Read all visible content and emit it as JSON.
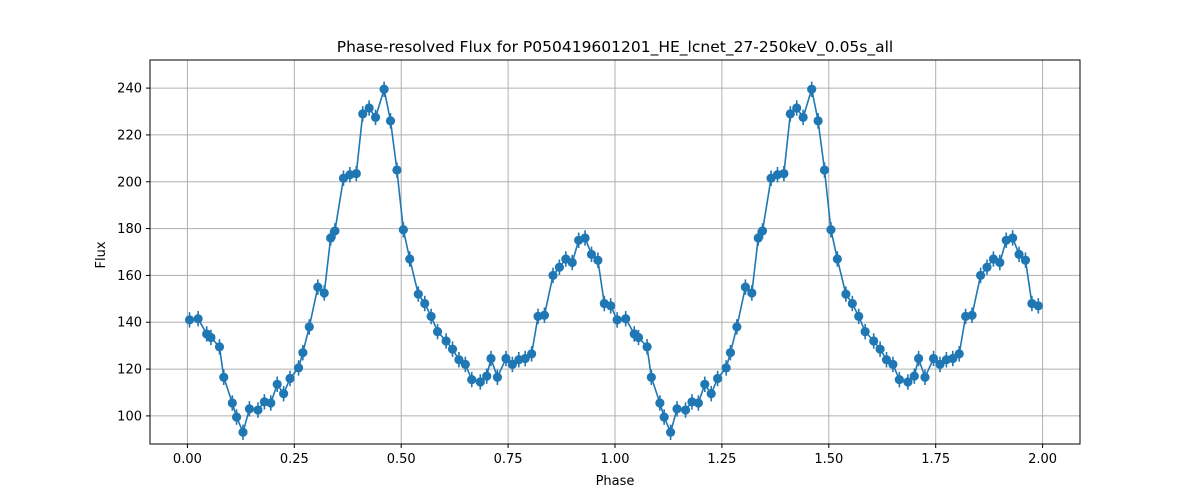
{
  "chart_data": {
    "type": "line",
    "title": "Phase-resolved Flux for P050419601201_HE_lcnet_27-250keV_0.05s_all",
    "xlabel": "Phase",
    "ylabel": "Flux",
    "xlim": [
      -0.0875,
      2.0875
    ],
    "ylim": [
      88,
      252
    ],
    "xticks": [
      0.0,
      0.25,
      0.5,
      0.75,
      1.0,
      1.25,
      1.5,
      1.75,
      2.0
    ],
    "xtick_labels": [
      "0.00",
      "0.25",
      "0.50",
      "0.75",
      "1.00",
      "1.25",
      "1.50",
      "1.75",
      "2.00"
    ],
    "yticks": [
      100,
      120,
      140,
      160,
      180,
      200,
      220,
      240
    ],
    "ytick_labels": [
      "100",
      "120",
      "140",
      "160",
      "180",
      "200",
      "220",
      "240"
    ],
    "grid": true,
    "legend": "none",
    "series": [
      {
        "color": "#1f77b4",
        "error": 3.3,
        "x": [
          0.005,
          0.025,
          0.045,
          0.055,
          0.075,
          0.085,
          0.105,
          0.115,
          0.13,
          0.145,
          0.165,
          0.18,
          0.195,
          0.21,
          0.225,
          0.24,
          0.26,
          0.27,
          0.285,
          0.305,
          0.32,
          0.335,
          0.345,
          0.365,
          0.38,
          0.395,
          0.41,
          0.425,
          0.44,
          0.46,
          0.475,
          0.49,
          0.505,
          0.52,
          0.54,
          0.555,
          0.57,
          0.585,
          0.605,
          0.62,
          0.635,
          0.65,
          0.665,
          0.685,
          0.7,
          0.71,
          0.725,
          0.745,
          0.76,
          0.775,
          0.79,
          0.805,
          0.82,
          0.835,
          0.855,
          0.87,
          0.885,
          0.9,
          0.915,
          0.93,
          0.945,
          0.96,
          0.975,
          0.99,
          1.005,
          1.025,
          1.045,
          1.055,
          1.075,
          1.085,
          1.105,
          1.115,
          1.13,
          1.145,
          1.165,
          1.18,
          1.195,
          1.21,
          1.225,
          1.24,
          1.26,
          1.27,
          1.285,
          1.305,
          1.32,
          1.335,
          1.345,
          1.365,
          1.38,
          1.395,
          1.41,
          1.425,
          1.44,
          1.46,
          1.475,
          1.49,
          1.505,
          1.52,
          1.54,
          1.555,
          1.57,
          1.585,
          1.605,
          1.62,
          1.635,
          1.65,
          1.665,
          1.685,
          1.7,
          1.71,
          1.725,
          1.745,
          1.76,
          1.775,
          1.79,
          1.805,
          1.82,
          1.835,
          1.855,
          1.87,
          1.885,
          1.9,
          1.915,
          1.93,
          1.945,
          1.96,
          1.975,
          1.99
        ],
        "y": [
          141.0,
          141.5,
          135.0,
          133.5,
          129.5,
          116.5,
          105.5,
          99.5,
          93.0,
          103.0,
          102.5,
          106.0,
          105.5,
          113.5,
          109.5,
          116.0,
          120.5,
          127.0,
          138.0,
          155.0,
          152.5,
          176.0,
          179.0,
          201.5,
          203.0,
          203.5,
          229.0,
          231.5,
          227.5,
          239.5,
          226.0,
          205.0,
          179.5,
          167.0,
          152.0,
          148.0,
          142.5,
          136.0,
          132.0,
          128.5,
          124.0,
          122.0,
          115.5,
          114.5,
          117.0,
          124.5,
          116.5,
          124.5,
          122.0,
          124.0,
          124.5,
          126.5,
          142.5,
          143.0,
          160.0,
          163.5,
          167.0,
          165.5,
          175.0,
          176.0,
          169.0,
          166.5,
          148.0,
          147.0,
          141.0,
          141.5,
          135.0,
          133.5,
          129.5,
          116.5,
          105.5,
          99.5,
          93.0,
          103.0,
          102.5,
          106.0,
          105.5,
          113.5,
          109.5,
          116.0,
          120.5,
          127.0,
          138.0,
          155.0,
          152.5,
          176.0,
          179.0,
          201.5,
          203.0,
          203.5,
          229.0,
          231.5,
          227.5,
          239.5,
          226.0,
          205.0,
          179.5,
          167.0,
          152.0,
          148.0,
          142.5,
          136.0,
          132.0,
          128.5,
          124.0,
          122.0,
          115.5,
          114.5,
          117.0,
          124.5,
          116.5,
          124.5,
          122.0,
          124.0,
          124.5,
          126.5,
          142.5,
          143.0,
          160.0,
          163.5,
          167.0,
          165.5,
          175.0,
          176.0,
          169.0,
          166.5,
          148.0,
          147.0
        ]
      }
    ]
  }
}
